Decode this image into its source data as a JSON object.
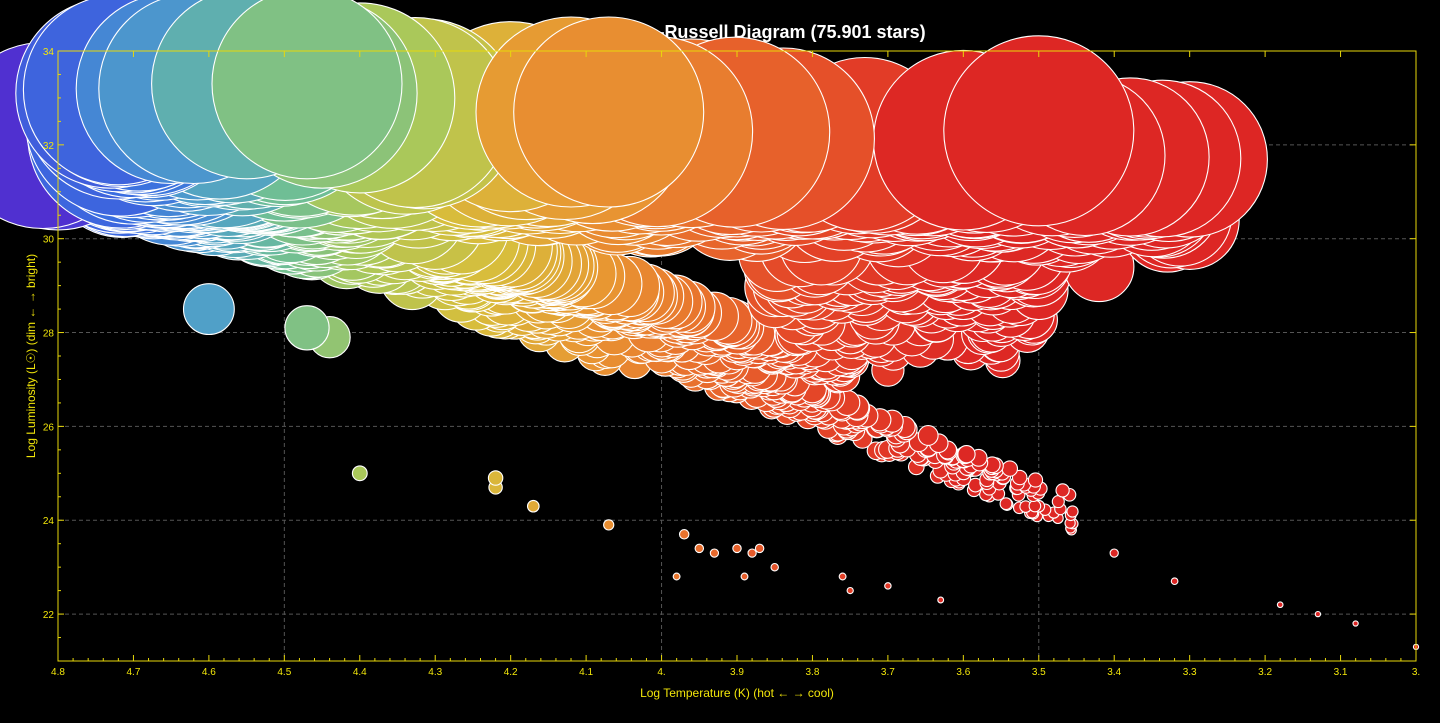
{
  "chart_data": {
    "type": "scatter",
    "title": "Hertzsprung–Russell Diagram (75.901 stars)",
    "xlabel": "Log Temperature (K) (hot ← → cool)",
    "ylabel": "Log Luminosity (L☉) (dim ← → bright)",
    "xlim": [
      4.8,
      3.0
    ],
    "ylim": [
      21,
      34
    ],
    "x_reversed": true,
    "grid": true,
    "x_ticks": [
      4.8,
      4.7,
      4.6,
      4.5,
      4.4,
      4.3,
      4.2,
      4.1,
      4.0,
      3.9,
      3.8,
      3.7,
      3.6,
      3.5,
      3.4,
      3.3,
      3.2,
      3.1,
      3.0
    ],
    "x_tick_labels": [
      "4.8",
      "4.7",
      "4.6",
      "4.5",
      "4.4",
      "4.3",
      "4.2",
      "4.1",
      "4.",
      "3.9",
      "3.8",
      "3.7",
      "3.6",
      "3.5",
      "3.4",
      "3.3",
      "3.2",
      "3.1",
      "3."
    ],
    "y_ticks": [
      22,
      24,
      26,
      28,
      30,
      32,
      34
    ],
    "y_tick_labels": [
      "22",
      "24",
      "26",
      "28",
      "30",
      "32",
      "34"
    ],
    "point_encoding": "color by temperature (violet/blue hot → red cool), size by luminosity",
    "sample_points": [
      {
        "x": 4.82,
        "y": 32.2
      },
      {
        "x": 4.8,
        "y": 32.1
      },
      {
        "x": 4.73,
        "y": 33.1
      },
      {
        "x": 4.7,
        "y": 33.0
      },
      {
        "x": 4.68,
        "y": 32.9
      },
      {
        "x": 4.65,
        "y": 33.2
      },
      {
        "x": 4.62,
        "y": 33.2
      },
      {
        "x": 4.55,
        "y": 33.3
      },
      {
        "x": 4.47,
        "y": 33.3
      },
      {
        "x": 4.45,
        "y": 33.1
      },
      {
        "x": 4.4,
        "y": 33.0
      },
      {
        "x": 4.6,
        "y": 32.7
      },
      {
        "x": 4.5,
        "y": 32.4
      },
      {
        "x": 4.4,
        "y": 32.2
      },
      {
        "x": 4.3,
        "y": 32.0
      },
      {
        "x": 4.2,
        "y": 32.6
      },
      {
        "x": 4.12,
        "y": 32.7
      },
      {
        "x": 4.07,
        "y": 32.7
      },
      {
        "x": 4.0,
        "y": 31.8
      },
      {
        "x": 3.9,
        "y": 31.7
      },
      {
        "x": 3.8,
        "y": 31.6
      },
      {
        "x": 3.7,
        "y": 31.8
      },
      {
        "x": 3.6,
        "y": 32.1
      },
      {
        "x": 3.5,
        "y": 32.3
      },
      {
        "x": 3.45,
        "y": 31.2
      },
      {
        "x": 3.35,
        "y": 31.1
      },
      {
        "x": 3.3,
        "y": 30.4
      },
      {
        "x": 3.6,
        "y": 29.8
      },
      {
        "x": 3.42,
        "y": 29.4
      },
      {
        "x": 3.5,
        "y": 28.9
      },
      {
        "x": 3.6,
        "y": 28.9
      },
      {
        "x": 3.75,
        "y": 28.0
      },
      {
        "x": 3.7,
        "y": 27.2
      },
      {
        "x": 3.9,
        "y": 27.6
      },
      {
        "x": 4.0,
        "y": 28.4
      },
      {
        "x": 4.1,
        "y": 29.2
      },
      {
        "x": 4.2,
        "y": 29.6
      },
      {
        "x": 4.3,
        "y": 30.4
      },
      {
        "x": 3.8,
        "y": 26.8
      },
      {
        "x": 3.7,
        "y": 26.0
      },
      {
        "x": 3.6,
        "y": 25.3
      },
      {
        "x": 3.5,
        "y": 24.3
      },
      {
        "x": 3.4,
        "y": 23.3
      },
      {
        "x": 3.32,
        "y": 22.7
      },
      {
        "x": 3.18,
        "y": 22.2
      },
      {
        "x": 3.13,
        "y": 22.0
      },
      {
        "x": 3.08,
        "y": 21.8
      },
      {
        "x": 3.0,
        "y": 21.3
      },
      {
        "x": 4.6,
        "y": 28.5
      },
      {
        "x": 4.47,
        "y": 28.1
      },
      {
        "x": 4.44,
        "y": 27.9
      },
      {
        "x": 4.4,
        "y": 25.0
      },
      {
        "x": 4.22,
        "y": 24.9
      },
      {
        "x": 4.22,
        "y": 24.7
      },
      {
        "x": 4.17,
        "y": 24.3
      },
      {
        "x": 4.07,
        "y": 23.9
      },
      {
        "x": 3.97,
        "y": 23.7
      },
      {
        "x": 3.95,
        "y": 23.4
      },
      {
        "x": 3.93,
        "y": 23.3
      },
      {
        "x": 3.9,
        "y": 23.4
      },
      {
        "x": 3.88,
        "y": 23.3
      },
      {
        "x": 3.87,
        "y": 23.4
      },
      {
        "x": 3.85,
        "y": 23.0
      },
      {
        "x": 3.98,
        "y": 22.8
      },
      {
        "x": 3.89,
        "y": 22.8
      },
      {
        "x": 3.76,
        "y": 22.8
      },
      {
        "x": 3.75,
        "y": 22.5
      },
      {
        "x": 3.7,
        "y": 22.6
      },
      {
        "x": 3.63,
        "y": 22.3
      }
    ],
    "colors": {
      "hot": "#5030d0",
      "blue": "#3a7ee0",
      "teal": "#5ab8a0",
      "green": "#a8c85a",
      "yellow": "#e0b840",
      "orange": "#e87a30",
      "red": "#dd2424"
    }
  }
}
